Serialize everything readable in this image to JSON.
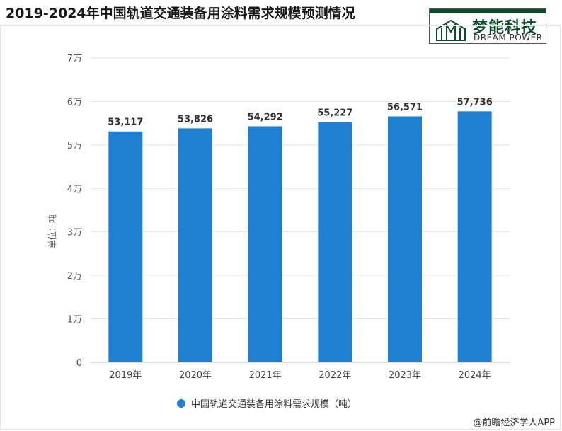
{
  "title": "2019-2024年中国轨道交通装备用涂料需求规模预测情况",
  "logo": {
    "name_cn": "梦能科技",
    "name_en": "DREAM POWER",
    "color": "#0f4a2a"
  },
  "source": "@前瞻经济学人APP",
  "chart_data": {
    "type": "bar",
    "categories": [
      "2019年",
      "2020年",
      "2021年",
      "2022年",
      "2023年",
      "2024年"
    ],
    "series": [
      {
        "name": "中国轨道交通装备用涂料需求规模（吨）",
        "values": [
          53117,
          53826,
          54292,
          55227,
          56571,
          57736
        ]
      }
    ],
    "data_labels": [
      "53,117",
      "53,826",
      "54,292",
      "55,227",
      "56,571",
      "57,736"
    ],
    "ylabel": "单位：吨",
    "ylim": [
      0,
      70000
    ],
    "yticks": [
      0,
      10000,
      20000,
      30000,
      40000,
      50000,
      60000,
      70000
    ],
    "ytick_labels": [
      "0",
      "1万",
      "2万",
      "3万",
      "4万",
      "5万",
      "6万",
      "7万"
    ],
    "grid": true,
    "legend": "bottom",
    "bar_color": "#1f7fd1"
  }
}
